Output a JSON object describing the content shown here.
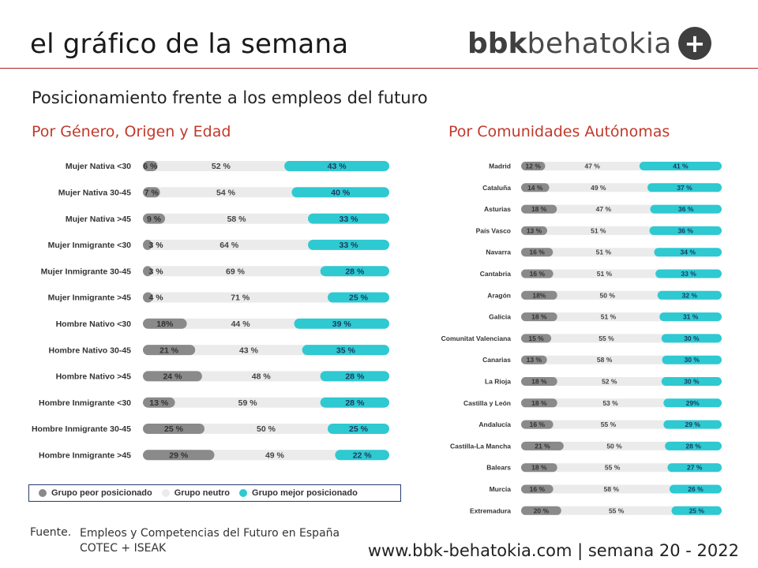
{
  "header": {
    "title": "el gráfico de la semana",
    "brand_bold": "bbk",
    "brand_rest": "behatokia",
    "brand_plus": "+"
  },
  "subtitle": "Posicionamiento frente a los empleos del futuro",
  "colors": {
    "worse": "#8a8a8a",
    "neutral": "#ebebeb",
    "better": "#2ec9d1",
    "accent": "#c0392b",
    "rule": "#b22222"
  },
  "legend": {
    "worse": "Grupo peor posicionado",
    "neutral": "Grupo neutro",
    "better": "Grupo mejor posicionado"
  },
  "chart_data": [
    {
      "type": "bar",
      "stacked": true,
      "orientation": "horizontal",
      "title": "Por Género, Origen y Edad",
      "series_names": [
        "Grupo peor posicionado",
        "Grupo neutro",
        "Grupo mejor posicionado"
      ],
      "categories": [
        "Mujer Nativa <30",
        "Mujer Nativa 30-45",
        "Mujer Nativa >45",
        "Mujer Inmigrante <30",
        "Mujer Inmigrante 30-45",
        "Mujer Inmigrante >45",
        "Hombre Nativo <30",
        "Hombre Nativo 30-45",
        "Hombre Nativo >45",
        "Hombre Inmigrante <30",
        "Hombre Inmigrante 30-45",
        "Hombre Inmigrante >45"
      ],
      "worse": [
        6,
        7,
        9,
        3,
        3,
        4,
        18,
        21,
        24,
        13,
        25,
        29
      ],
      "neutral": [
        52,
        54,
        58,
        64,
        69,
        71,
        44,
        43,
        48,
        59,
        50,
        49
      ],
      "better": [
        43,
        40,
        33,
        33,
        28,
        25,
        39,
        35,
        28,
        28,
        25,
        22
      ],
      "worse_labels": [
        "6 %",
        "7 %",
        "9 %",
        "3 %",
        "3 %",
        "4 %",
        "18%",
        "21 %",
        "24 %",
        "13 %",
        "25 %",
        "29 %"
      ],
      "neutral_labels": [
        "52 %",
        "54 %",
        "58 %",
        "64 %",
        "69 %",
        "71 %",
        "44 %",
        "43 %",
        "48 %",
        "59 %",
        "50 %",
        "49 %"
      ],
      "better_labels": [
        "43 %",
        "40 %",
        "33 %",
        "33 %",
        "28 %",
        "25 %",
        "39 %",
        "35 %",
        "28 %",
        "28 %",
        "25 %",
        "22 %"
      ],
      "unit": "%"
    },
    {
      "type": "bar",
      "stacked": true,
      "orientation": "horizontal",
      "title": "Por Comunidades Autónomas",
      "series_names": [
        "Grupo peor posicionado",
        "Grupo neutro",
        "Grupo mejor posicionado"
      ],
      "categories": [
        "Madrid",
        "Cataluña",
        "Asturias",
        "País Vasco",
        "Navarra",
        "Cantabria",
        "Aragón",
        "Galicia",
        "Comunitat Valenciana",
        "Canarias",
        "La Rioja",
        "Castilla y León",
        "Andalucía",
        "Castilla-La Mancha",
        "Balears",
        "Murcia",
        "Extremadura"
      ],
      "worse": [
        12,
        14,
        18,
        13,
        16,
        16,
        18,
        18,
        15,
        13,
        18,
        18,
        16,
        21,
        18,
        16,
        20
      ],
      "neutral": [
        47,
        49,
        47,
        51,
        51,
        51,
        50,
        51,
        55,
        58,
        52,
        53,
        55,
        50,
        55,
        58,
        55
      ],
      "better": [
        41,
        37,
        36,
        36,
        34,
        33,
        32,
        31,
        30,
        30,
        30,
        29,
        29,
        28,
        27,
        26,
        25
      ],
      "worse_labels": [
        "12 %",
        "14 %",
        "18 %",
        "13 %",
        "16 %",
        "16 %",
        "18%",
        "18 %",
        "15 %",
        "13 %",
        "18 %",
        "18 %",
        "16 %",
        "21 %",
        "18 %",
        "16 %",
        "20 %"
      ],
      "neutral_labels": [
        "47 %",
        "49 %",
        "47 %",
        "51 %",
        "51 %",
        "51 %",
        "50 %",
        "51 %",
        "55 %",
        "58 %",
        "52 %",
        "53 %",
        "55 %",
        "50 %",
        "55 %",
        "58 %",
        "55 %"
      ],
      "better_labels": [
        "41 %",
        "37 %",
        "36 %",
        "36 %",
        "34 %",
        "33 %",
        "32 %",
        "31 %",
        "30 %",
        "30 %",
        "30 %",
        "29%",
        "29 %",
        "28 %",
        "27 %",
        "26 %",
        "25 %"
      ],
      "unit": "%"
    }
  ],
  "source": {
    "label": "Fuente.",
    "line1": "Empleos y Competencias del Futuro en España",
    "line2": "COTEC + ISEAK"
  },
  "footer": "www.bbk-behatokia.com | semana 20 - 2022"
}
